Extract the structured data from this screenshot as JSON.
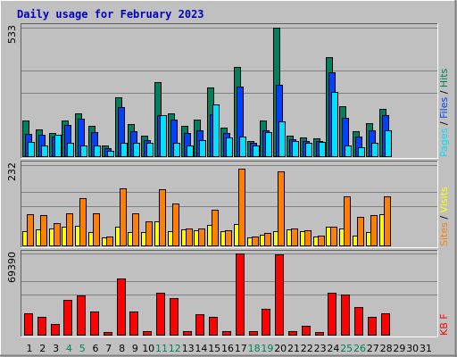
{
  "title": "Daily usage for February 2023",
  "colors": {
    "hits": "#00805C",
    "files": "#0040FF",
    "pages": "#00E0FF",
    "visits": "#FFFF00",
    "sites": "#FF8000",
    "kbytes": "#FF0000",
    "weekend_label": "#00805C",
    "weekday_label": "#000000",
    "panel": "#C0C0C0",
    "gridline": "#808080"
  },
  "chart_data": [
    {
      "type": "bar",
      "panel": "hits-files-pages",
      "ylabel_max": "533",
      "ylim": [
        0,
        533
      ],
      "legend": [
        {
          "label": "Pages",
          "color_key": "pages"
        },
        {
          "label": "Files",
          "color_key": "files"
        },
        {
          "label": "Hits",
          "color_key": "hits"
        }
      ],
      "categories": [
        "1",
        "2",
        "3",
        "4",
        "5",
        "6",
        "7",
        "8",
        "9",
        "10",
        "11",
        "12",
        "13",
        "14",
        "15",
        "16",
        "17",
        "18",
        "19",
        "20",
        "21",
        "22",
        "23",
        "24",
        "25",
        "26",
        "27",
        "28",
        "29",
        "30",
        "31"
      ],
      "series": [
        {
          "name": "Hits",
          "color_key": "hits",
          "values": [
            150,
            115,
            98,
            152,
            180,
            128,
            49,
            248,
            136,
            88,
            307,
            180,
            128,
            155,
            285,
            123,
            372,
            65,
            152,
            533,
            88,
            82,
            78,
            411,
            210,
            107,
            138,
            197,
            null,
            null,
            null
          ]
        },
        {
          "name": "Files",
          "color_key": "files",
          "values": [
            95,
            92,
            86,
            131,
            159,
            103,
            37,
            207,
            106,
            70,
            172,
            155,
            98,
            112,
            175,
            99,
            290,
            57,
            112,
            298,
            72,
            68,
            65,
            348,
            160,
            83,
            111,
            172,
            null,
            null,
            null
          ]
        },
        {
          "name": "Pages",
          "color_key": "pages",
          "values": [
            62,
            49,
            92,
            57,
            49,
            49,
            24,
            57,
            57,
            57,
            172,
            57,
            49,
            70,
            217,
            82,
            86,
            49,
            103,
            148,
            65,
            57,
            61,
            270,
            49,
            41,
            57,
            111,
            null,
            null,
            null
          ]
        }
      ]
    },
    {
      "type": "bar",
      "panel": "visits-sites",
      "ylabel_max": "232",
      "ylim": [
        0,
        232
      ],
      "legend": [
        {
          "label": "Sites",
          "color_key": "sites"
        },
        {
          "label": "Visits",
          "color_key": "visits"
        }
      ],
      "categories": [
        "1",
        "2",
        "3",
        "4",
        "5",
        "6",
        "7",
        "8",
        "9",
        "10",
        "11",
        "12",
        "13",
        "14",
        "15",
        "16",
        "17",
        "18",
        "19",
        "20",
        "21",
        "22",
        "23",
        "24",
        "25",
        "26",
        "27",
        "28",
        "29",
        "30",
        "31"
      ],
      "series": [
        {
          "name": "Visits",
          "color_key": "visits",
          "values": [
            43,
            49,
            52,
            55,
            58,
            40,
            25,
            55,
            40,
            40,
            71,
            43,
            49,
            46,
            61,
            43,
            64,
            25,
            34,
            43,
            49,
            43,
            28,
            55,
            52,
            31,
            40,
            92,
            null,
            null,
            null
          ]
        },
        {
          "name": "Sites",
          "color_key": "sites",
          "values": [
            92,
            89,
            67,
            95,
            138,
            95,
            28,
            166,
            95,
            71,
            163,
            123,
            52,
            52,
            104,
            46,
            223,
            28,
            37,
            214,
            52,
            46,
            31,
            55,
            144,
            83,
            89,
            144,
            null,
            null,
            null
          ]
        }
      ]
    },
    {
      "type": "bar",
      "panel": "kbytes",
      "ylabel_max": "69390",
      "ylim": [
        0,
        69390
      ],
      "legend": [
        {
          "label": "KB F",
          "color_key": "kbytes"
        }
      ],
      "categories": [
        "1",
        "2",
        "3",
        "4",
        "5",
        "6",
        "7",
        "8",
        "9",
        "10",
        "11",
        "12",
        "13",
        "14",
        "15",
        "16",
        "17",
        "18",
        "19",
        "20",
        "21",
        "22",
        "23",
        "24",
        "25",
        "26",
        "27",
        "28",
        "29",
        "30",
        "31"
      ],
      "series": [
        {
          "name": "KB F",
          "color_key": "kbytes",
          "values": [
            19000,
            16000,
            10000,
            30000,
            34000,
            20000,
            3000,
            48000,
            20000,
            4000,
            36000,
            32000,
            4000,
            18000,
            16000,
            4000,
            69390,
            4000,
            23000,
            69000,
            4000,
            8000,
            3000,
            36000,
            35000,
            24000,
            16000,
            19000,
            null,
            null,
            null
          ]
        }
      ]
    }
  ],
  "day_labels": [
    "1",
    "2",
    "3",
    "4",
    "5",
    "6",
    "7",
    "8",
    "9",
    "10",
    "11",
    "12",
    "13",
    "14",
    "15",
    "16",
    "17",
    "18",
    "19",
    "20",
    "21",
    "22",
    "23",
    "24",
    "25",
    "26",
    "27",
    "28",
    "29",
    "30",
    "31"
  ],
  "weekend_days": [
    4,
    5,
    11,
    12,
    18,
    19,
    25,
    26
  ]
}
